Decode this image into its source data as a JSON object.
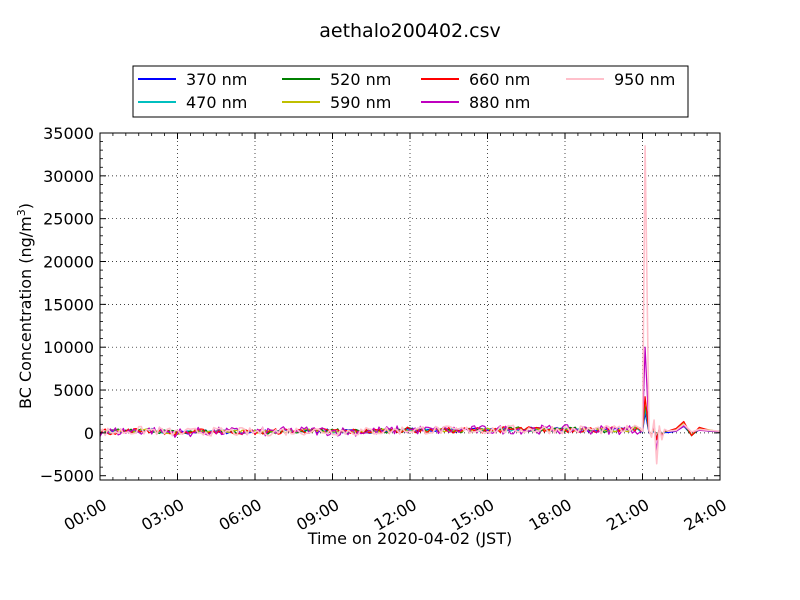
{
  "chart_data": {
    "type": "line",
    "title": "aethalo200402.csv",
    "xlabel": "Time on 2020-04-02 (JST)",
    "ylabel_main": "BC Concentration (ng/m",
    "ylabel_sup": "3",
    "ylabel_close": ")",
    "xlim": [
      0,
      24
    ],
    "ylim": [
      -5500,
      35000
    ],
    "xticks": [
      0,
      3,
      6,
      9,
      12,
      15,
      18,
      21,
      24
    ],
    "xtick_labels": [
      "00:00",
      "03:00",
      "06:00",
      "09:00",
      "12:00",
      "15:00",
      "18:00",
      "21:00",
      "24:00"
    ],
    "yticks": [
      -5000,
      0,
      5000,
      10000,
      15000,
      20000,
      25000,
      30000,
      35000
    ],
    "ytick_labels": [
      "−5000",
      "0",
      "5000",
      "10000",
      "15000",
      "20000",
      "25000",
      "30000",
      "35000"
    ],
    "grid": true,
    "legend_placement": "top-center",
    "series": [
      {
        "name": "370 nm",
        "color": "#0000ff"
      },
      {
        "name": "470 nm",
        "color": "#00bfbf"
      },
      {
        "name": "520 nm",
        "color": "#008000"
      },
      {
        "name": "590 nm",
        "color": "#bfbf00"
      },
      {
        "name": "660 nm",
        "color": "#ff0000"
      },
      {
        "name": "880 nm",
        "color": "#bf00bf"
      },
      {
        "name": "950 nm",
        "color": "#ffc0cb"
      }
    ],
    "baseline": {
      "x": [
        0,
        2,
        3,
        4,
        6,
        8,
        10,
        12,
        14,
        16,
        18,
        20,
        21
      ],
      "y": [
        100,
        300,
        0,
        150,
        100,
        250,
        150,
        350,
        300,
        400,
        400,
        350,
        400
      ]
    },
    "spike": {
      "x": [
        21.0,
        21.1,
        21.25,
        21.35,
        21.45,
        21.55,
        21.65,
        21.75,
        21.85,
        22.0,
        22.3,
        22.6,
        22.9,
        23.2,
        23.6,
        24.0
      ],
      "y_950": [
        200,
        33500,
        300,
        -500,
        1500,
        -3600,
        800,
        -800,
        400,
        200,
        300,
        1000,
        100,
        400,
        300,
        200
      ],
      "y_880": [
        200,
        10000,
        200,
        -400,
        1000,
        -2000,
        600,
        -500,
        300,
        200,
        200,
        800,
        100,
        300,
        200,
        150
      ],
      "y_other": [
        200,
        4000,
        200,
        -200,
        600,
        -800,
        500,
        -300,
        200,
        200,
        400,
        1200,
        -300,
        600,
        300,
        200
      ]
    }
  }
}
